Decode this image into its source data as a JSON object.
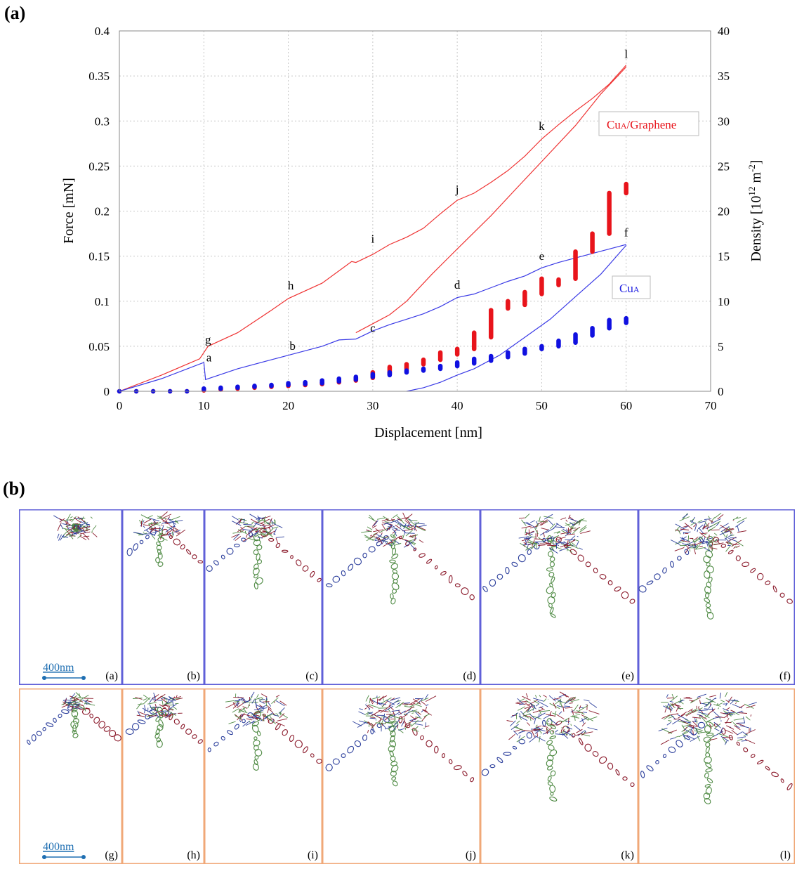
{
  "panel_a_label": "(a)",
  "panel_b_label": "(b)",
  "chart_data": {
    "type": "line",
    "xlabel": "Displacement [nm]",
    "ylabel_left": "Force [mN]",
    "ylabel_right_main": "Density [10",
    "ylabel_right_sup1": "12",
    "ylabel_right_mid": " m",
    "ylabel_right_sup2": "-2",
    "ylabel_right_end": "]",
    "xlim": [
      0,
      70
    ],
    "ylim_left": [
      0,
      0.4
    ],
    "ylim_right": [
      0,
      40
    ],
    "x_ticks": [
      0,
      10,
      20,
      30,
      40,
      50,
      60,
      70
    ],
    "y_left_ticks": [
      0,
      0.05,
      0.1,
      0.15,
      0.2,
      0.25,
      0.3,
      0.35,
      0.4
    ],
    "y_left_tick_labels": [
      "0",
      "0.05",
      "0.1",
      "0.15",
      "0.2",
      "0.25",
      "0.3",
      "0.35",
      "0.4"
    ],
    "y_right_ticks": [
      0,
      5,
      10,
      15,
      20,
      25,
      30,
      35,
      40
    ],
    "grid": true,
    "legend": [
      {
        "name_main": "Cu",
        "name_sub": "A",
        "name_rest": "/Graphene",
        "color": "#e8141b"
      },
      {
        "name_main": "Cu",
        "name_sub": "A",
        "name_rest": "",
        "color": "#1d1de0"
      }
    ],
    "series": [
      {
        "name": "CuA/Graphene force loading",
        "color": "#ef3333",
        "axis": "left",
        "x": [
          0,
          5,
          9.5,
          10.5,
          14,
          18,
          20,
          24,
          27.5,
          28,
          30,
          32,
          34,
          36,
          38,
          40,
          42,
          44,
          46,
          48,
          50,
          52,
          54,
          56,
          58,
          60
        ],
        "y": [
          0,
          0.018,
          0.036,
          0.05,
          0.065,
          0.09,
          0.103,
          0.12,
          0.144,
          0.143,
          0.152,
          0.163,
          0.171,
          0.181,
          0.197,
          0.212,
          0.22,
          0.232,
          0.245,
          0.261,
          0.28,
          0.296,
          0.311,
          0.325,
          0.341,
          0.362
        ]
      },
      {
        "name": "CuA/Graphene force unloading",
        "color": "#ef3333",
        "axis": "left",
        "x": [
          60,
          57,
          54,
          50,
          47,
          44,
          40,
          37,
          34,
          32,
          30,
          28
        ],
        "y": [
          0.36,
          0.33,
          0.295,
          0.255,
          0.225,
          0.195,
          0.158,
          0.13,
          0.1,
          0.085,
          0.075,
          0.065
        ]
      },
      {
        "name": "CuA force loading",
        "color": "#3a3ae6",
        "axis": "left",
        "x": [
          0,
          5,
          10,
          10.2,
          14,
          18,
          20,
          24,
          26,
          28,
          30,
          32,
          34,
          36,
          38,
          40,
          42,
          44,
          46,
          48,
          50,
          52,
          54,
          56,
          58,
          60
        ],
        "y": [
          0,
          0.014,
          0.032,
          0.013,
          0.025,
          0.035,
          0.04,
          0.05,
          0.057,
          0.058,
          0.067,
          0.074,
          0.08,
          0.086,
          0.094,
          0.104,
          0.108,
          0.115,
          0.122,
          0.128,
          0.137,
          0.143,
          0.148,
          0.153,
          0.158,
          0.163
        ]
      },
      {
        "name": "CuA force unloading",
        "color": "#3a3ae6",
        "axis": "left",
        "x": [
          60,
          57,
          54,
          51,
          48,
          45,
          42,
          40,
          38,
          36,
          34
        ],
        "y": [
          0.162,
          0.13,
          0.105,
          0.08,
          0.06,
          0.04,
          0.025,
          0.018,
          0.01,
          0.004,
          0
        ]
      },
      {
        "name": "CuA/Graphene density",
        "color": "#e8141b",
        "axis": "right",
        "x": [
          0,
          2,
          4,
          6,
          8,
          10,
          12,
          14,
          16,
          18,
          20,
          22,
          24,
          26,
          28,
          30,
          32,
          34,
          36,
          38,
          40,
          42,
          44,
          46,
          48,
          50,
          52,
          54,
          56,
          58,
          60
        ],
        "y_low": [
          0,
          0,
          0,
          0,
          0,
          0.1,
          0.2,
          0.3,
          0.4,
          0.5,
          0.6,
          0.7,
          0.8,
          1.0,
          1.2,
          1.5,
          1.9,
          2.5,
          3.0,
          3.5,
          4.1,
          4.7,
          6.0,
          9.2,
          9.6,
          10.8,
          11.8,
          12.5,
          15.5,
          17.5,
          22.0
        ],
        "y_high": [
          0,
          0,
          0,
          0,
          0,
          0.2,
          0.3,
          0.4,
          0.5,
          0.6,
          0.7,
          0.8,
          1.0,
          1.2,
          1.5,
          2.1,
          2.7,
          3.0,
          3.5,
          4.3,
          4.7,
          6.5,
          9.0,
          10.0,
          11.0,
          12.5,
          12.4,
          15.5,
          17.5,
          22.0,
          23.0
        ]
      },
      {
        "name": "CuA density",
        "color": "#1010e0",
        "axis": "right",
        "x": [
          0,
          2,
          4,
          6,
          8,
          10,
          12,
          14,
          16,
          18,
          20,
          22,
          24,
          26,
          28,
          30,
          32,
          34,
          36,
          38,
          40,
          42,
          44,
          46,
          48,
          50,
          52,
          54,
          56,
          58,
          60
        ],
        "y_low": [
          0,
          0,
          0,
          0,
          0,
          0.2,
          0.3,
          0.4,
          0.5,
          0.6,
          0.7,
          0.8,
          0.9,
          1.1,
          1.3,
          1.6,
          1.8,
          2.1,
          2.3,
          2.5,
          2.8,
          3.1,
          3.4,
          3.8,
          4.2,
          4.7,
          5.0,
          5.4,
          6.2,
          7.0,
          7.6
        ],
        "y_high": [
          0,
          0,
          0,
          0,
          0,
          0.3,
          0.4,
          0.5,
          0.6,
          0.7,
          0.9,
          1.0,
          1.2,
          1.4,
          1.6,
          1.9,
          2.1,
          2.3,
          2.5,
          2.8,
          3.2,
          3.6,
          3.9,
          4.3,
          4.7,
          5.0,
          5.6,
          6.3,
          7.0,
          7.9,
          8.1
        ]
      }
    ],
    "annotations": [
      {
        "text": "a",
        "x": 10.6,
        "y": 0.033
      },
      {
        "text": "b",
        "x": 20.5,
        "y": 0.046
      },
      {
        "text": "c",
        "x": 30,
        "y": 0.066
      },
      {
        "text": "d",
        "x": 40,
        "y": 0.114
      },
      {
        "text": "e",
        "x": 50,
        "y": 0.146
      },
      {
        "text": "f",
        "x": 60,
        "y": 0.172
      },
      {
        "text": "g",
        "x": 10.5,
        "y": 0.053
      },
      {
        "text": "h",
        "x": 20.3,
        "y": 0.113
      },
      {
        "text": "i",
        "x": 30,
        "y": 0.165
      },
      {
        "text": "j",
        "x": 40,
        "y": 0.22
      },
      {
        "text": "k",
        "x": 50,
        "y": 0.29
      },
      {
        "text": "l",
        "x": 60,
        "y": 0.37
      }
    ]
  },
  "simulation_panels": {
    "scale_label": "400nm",
    "rows": [
      {
        "name": "CuA",
        "border_color": "#6060d8",
        "labels": [
          "(a)",
          "(b)",
          "(c)",
          "(d)",
          "(e)",
          "(f)"
        ],
        "spread": [
          0.0,
          0.45,
          0.7,
          0.85,
          1.0,
          1.0
        ],
        "cluster": [
          0.25,
          0.25,
          0.3,
          0.45,
          0.55,
          0.55
        ]
      },
      {
        "name": "CuA/Graphene",
        "border_color": "#f0a878",
        "labels": [
          "(g)",
          "(h)",
          "(i)",
          "(j)",
          "(k)",
          "(l)"
        ],
        "spread": [
          0.4,
          0.45,
          0.7,
          0.85,
          1.0,
          1.0
        ],
        "cluster": [
          0.08,
          0.28,
          0.4,
          0.6,
          0.75,
          0.85
        ]
      }
    ]
  }
}
